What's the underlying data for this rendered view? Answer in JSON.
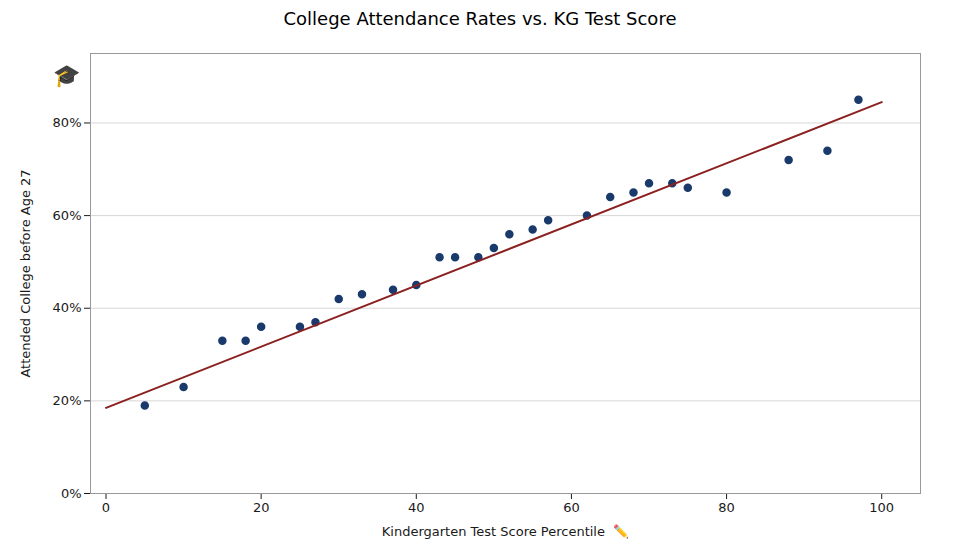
{
  "chart_data": {
    "type": "scatter",
    "title": "College Attendance Rates vs. KG Test Score",
    "xlabel": "Kindergarten Test Score Percentile  ✏️",
    "ylabel": "Attended College before Age 27",
    "annotations": [
      "🎓"
    ],
    "series": [
      {
        "type": "scatter",
        "color": "#1a3a6b",
        "x": [
          5,
          10,
          15,
          18,
          20,
          25,
          27,
          30,
          33,
          37,
          40,
          43,
          45,
          48,
          50,
          52,
          55,
          57,
          62,
          65,
          68,
          70,
          73,
          75,
          80,
          88,
          93,
          97
        ],
        "values": [
          0.19,
          0.23,
          0.33,
          0.33,
          0.36,
          0.36,
          0.37,
          0.42,
          0.43,
          0.44,
          0.45,
          0.51,
          0.51,
          0.51,
          0.53,
          0.56,
          0.57,
          0.59,
          0.6,
          0.64,
          0.65,
          0.67,
          0.67,
          0.66,
          0.65,
          0.72,
          0.74,
          0.85
        ]
      },
      {
        "type": "line",
        "color": "#8b2020",
        "x": [
          0,
          100
        ],
        "values": [
          0.185,
          0.845
        ]
      }
    ],
    "xlim": [
      -2,
      105
    ],
    "ylim": [
      0,
      0.95
    ],
    "xticks": [
      0,
      20,
      40,
      60,
      80,
      100
    ],
    "yticks": [
      {
        "value": 0.0,
        "label": "0%"
      },
      {
        "value": 0.2,
        "label": "20%"
      },
      {
        "value": 0.4,
        "label": "40%"
      },
      {
        "value": 0.6,
        "label": "60%"
      },
      {
        "value": 0.8,
        "label": "80%"
      }
    ],
    "grid": "y"
  }
}
